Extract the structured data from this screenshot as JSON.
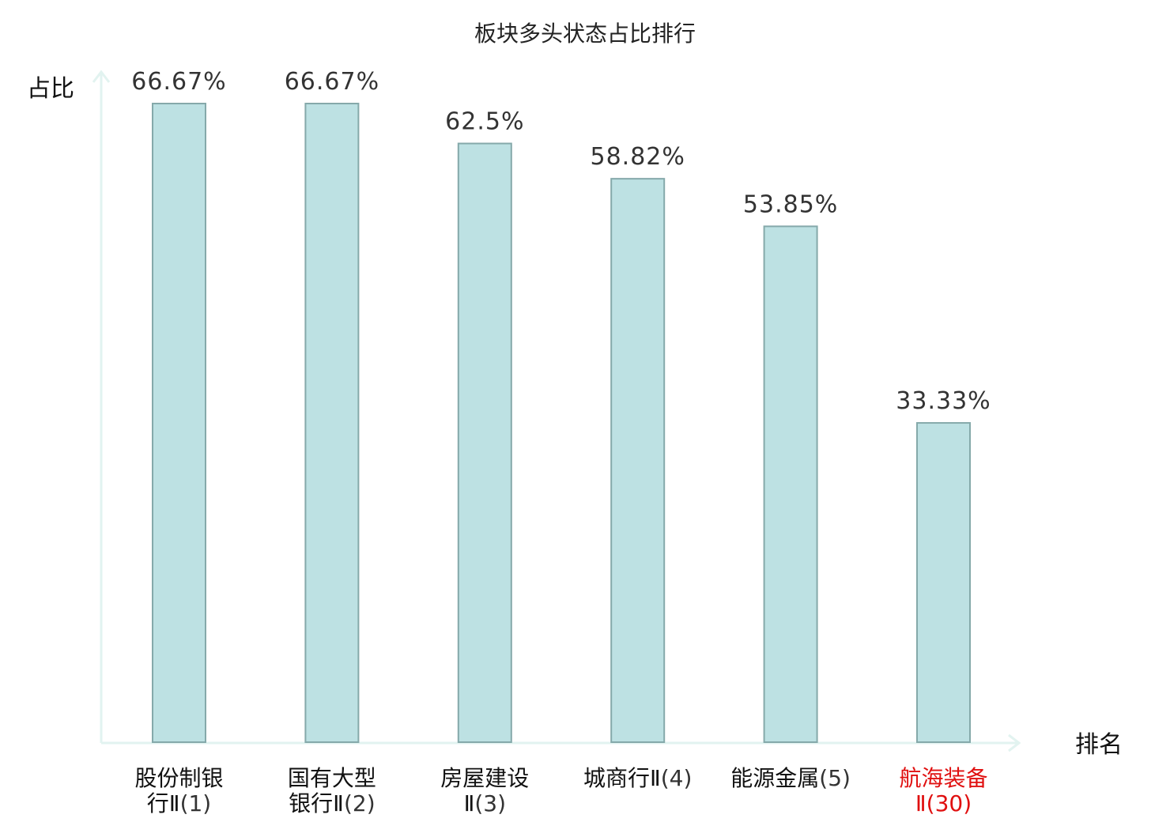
{
  "chart_data": {
    "type": "bar",
    "title": "板块多头状态占比排行",
    "ylabel": "占比",
    "xlabel": "排名",
    "categories": [
      {
        "line1": "股份制银",
        "line2": "行Ⅱ",
        "rank": "(1)",
        "highlight": false
      },
      {
        "line1": "国有大型",
        "line2": "银行Ⅱ",
        "rank": "(2)",
        "highlight": false
      },
      {
        "line1": "房屋建设",
        "line2": "Ⅱ",
        "rank": "(3)",
        "highlight": false
      },
      {
        "line1": "城商行Ⅱ",
        "line2": "",
        "rank": "(4)",
        "highlight": false
      },
      {
        "line1": "能源金属",
        "line2": "",
        "rank": "(5)",
        "highlight": false
      },
      {
        "line1": "航海装备",
        "line2": "Ⅱ",
        "rank": "(30)",
        "highlight": true
      }
    ],
    "values": [
      66.67,
      66.67,
      62.5,
      58.82,
      53.85,
      33.33
    ],
    "value_labels": [
      "66.67%",
      "66.67%",
      "62.5%",
      "58.82%",
      "53.85%",
      "33.33%"
    ],
    "ylim": [
      0,
      66.67
    ],
    "grid": false,
    "colors": {
      "bar_fill": "#bde1e3",
      "bar_stroke": "#85a9aa",
      "axis": "#e2f3f0",
      "highlight_text": "#e01010"
    }
  }
}
